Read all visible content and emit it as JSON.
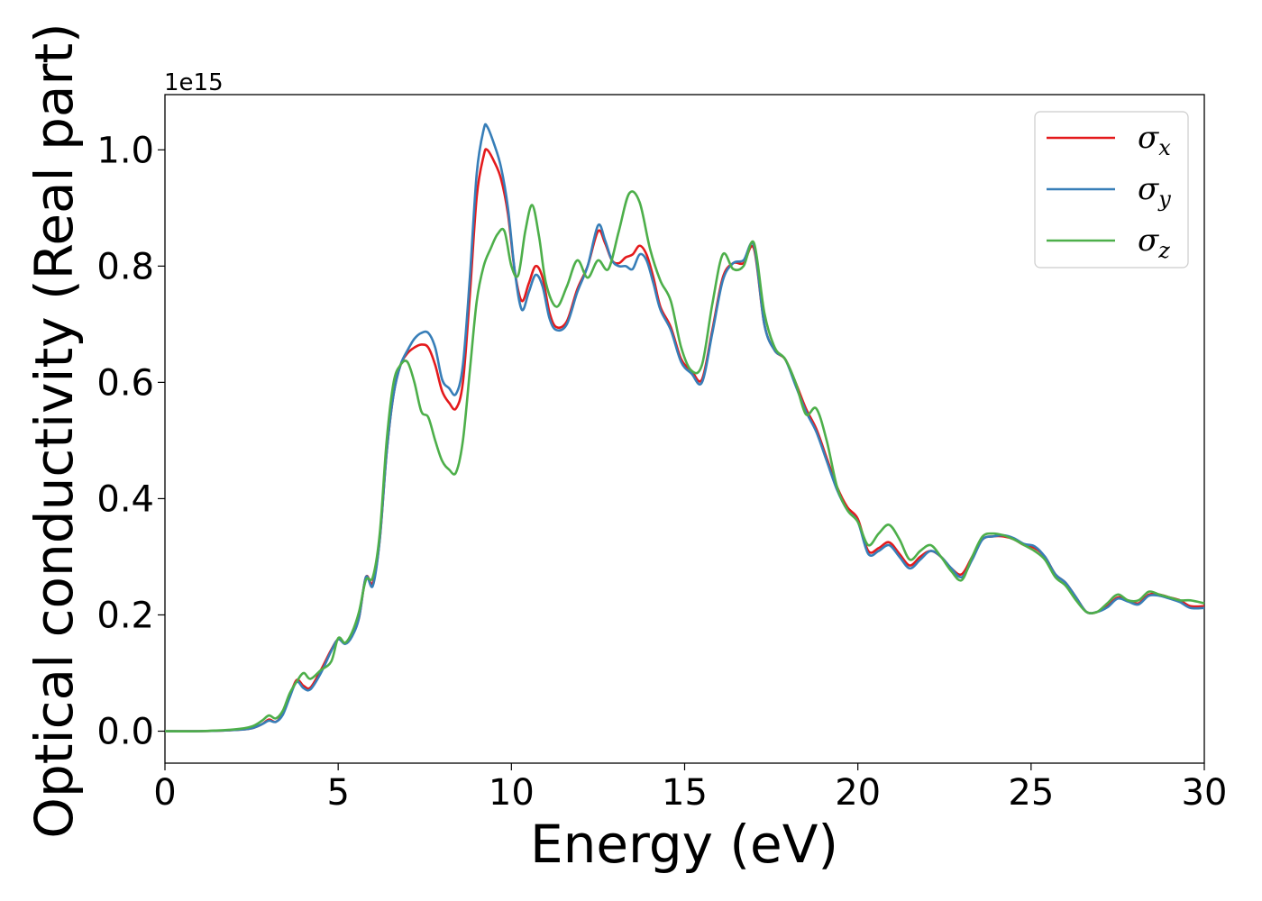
{
  "chart_data": {
    "type": "line",
    "title": "",
    "xlabel": "Energy (eV)",
    "ylabel": "Optical conductivity (Real part)",
    "y_offset_label": "1e15",
    "xlim": [
      0,
      30
    ],
    "ylim": [
      -0.055,
      1.095
    ],
    "xticks": [
      0,
      5,
      10,
      15,
      20,
      25,
      30
    ],
    "xtick_labels": [
      "0",
      "5",
      "10",
      "15",
      "20",
      "25",
      "30"
    ],
    "yticks": [
      0.0,
      0.2,
      0.4,
      0.6,
      0.8,
      1.0
    ],
    "ytick_labels": [
      "0.0",
      "0.2",
      "0.4",
      "0.6",
      "0.8",
      "1.0"
    ],
    "grid": false,
    "legend_position": "top-right",
    "series": [
      {
        "name": "σx",
        "legend_symbol": "σ",
        "legend_subscript": "x",
        "color": "#e41a1c",
        "x": [
          0,
          1,
          2,
          2.5,
          2.8,
          3.0,
          3.2,
          3.4,
          3.6,
          3.8,
          4.0,
          4.2,
          4.5,
          4.8,
          5.0,
          5.2,
          5.4,
          5.6,
          5.8,
          6.0,
          6.2,
          6.4,
          6.6,
          6.8,
          7.0,
          7.2,
          7.4,
          7.6,
          7.8,
          8.0,
          8.2,
          8.4,
          8.6,
          8.8,
          9.0,
          9.2,
          9.3,
          9.5,
          9.7,
          9.9,
          10.1,
          10.3,
          10.5,
          10.7,
          10.9,
          11.1,
          11.3,
          11.6,
          11.9,
          12.2,
          12.5,
          12.7,
          12.9,
          13.1,
          13.3,
          13.5,
          13.7,
          13.9,
          14.1,
          14.3,
          14.6,
          14.9,
          15.2,
          15.5,
          15.8,
          16.1,
          16.4,
          16.7,
          17.0,
          17.3,
          17.6,
          17.9,
          18.2,
          18.5,
          18.8,
          19.1,
          19.4,
          19.7,
          20.0,
          20.3,
          20.6,
          20.9,
          21.2,
          21.5,
          21.8,
          22.1,
          22.4,
          22.7,
          23.0,
          23.3,
          23.6,
          23.9,
          24.2,
          24.5,
          24.8,
          25.1,
          25.4,
          25.7,
          26.0,
          26.3,
          26.6,
          26.9,
          27.2,
          27.5,
          27.8,
          28.1,
          28.4,
          28.7,
          29.0,
          29.3,
          29.6,
          30.0
        ],
        "y": [
          0.0,
          0.0,
          0.002,
          0.005,
          0.012,
          0.02,
          0.016,
          0.03,
          0.06,
          0.088,
          0.078,
          0.075,
          0.105,
          0.14,
          0.158,
          0.152,
          0.165,
          0.195,
          0.265,
          0.255,
          0.33,
          0.48,
          0.58,
          0.63,
          0.65,
          0.66,
          0.665,
          0.66,
          0.63,
          0.585,
          0.565,
          0.555,
          0.6,
          0.75,
          0.92,
          0.99,
          1.0,
          0.98,
          0.95,
          0.89,
          0.79,
          0.74,
          0.77,
          0.8,
          0.78,
          0.72,
          0.695,
          0.705,
          0.76,
          0.8,
          0.86,
          0.84,
          0.81,
          0.805,
          0.815,
          0.82,
          0.835,
          0.82,
          0.78,
          0.73,
          0.695,
          0.64,
          0.62,
          0.605,
          0.69,
          0.78,
          0.805,
          0.805,
          0.83,
          0.7,
          0.655,
          0.64,
          0.6,
          0.555,
          0.52,
          0.47,
          0.42,
          0.385,
          0.365,
          0.31,
          0.315,
          0.325,
          0.305,
          0.285,
          0.3,
          0.31,
          0.3,
          0.28,
          0.27,
          0.3,
          0.33,
          0.335,
          0.335,
          0.33,
          0.32,
          0.315,
          0.3,
          0.27,
          0.255,
          0.23,
          0.205,
          0.205,
          0.215,
          0.23,
          0.225,
          0.22,
          0.235,
          0.235,
          0.23,
          0.225,
          0.215,
          0.215
        ]
      },
      {
        "name": "σy",
        "legend_symbol": "σ",
        "legend_subscript": "y",
        "color": "#377eb8",
        "x": [
          0,
          1,
          2,
          2.5,
          2.8,
          3.0,
          3.2,
          3.4,
          3.6,
          3.8,
          4.0,
          4.2,
          4.5,
          4.8,
          5.0,
          5.2,
          5.4,
          5.6,
          5.8,
          6.0,
          6.2,
          6.4,
          6.6,
          6.8,
          7.0,
          7.2,
          7.4,
          7.6,
          7.8,
          8.0,
          8.2,
          8.4,
          8.6,
          8.8,
          9.0,
          9.2,
          9.3,
          9.5,
          9.7,
          9.9,
          10.1,
          10.3,
          10.5,
          10.7,
          10.9,
          11.1,
          11.3,
          11.6,
          11.9,
          12.2,
          12.5,
          12.7,
          12.9,
          13.1,
          13.3,
          13.5,
          13.7,
          13.9,
          14.1,
          14.3,
          14.6,
          14.9,
          15.2,
          15.5,
          15.8,
          16.1,
          16.4,
          16.7,
          17.0,
          17.3,
          17.6,
          17.9,
          18.2,
          18.5,
          18.8,
          19.1,
          19.4,
          19.7,
          20.0,
          20.3,
          20.6,
          20.9,
          21.2,
          21.5,
          21.8,
          22.1,
          22.4,
          22.7,
          23.0,
          23.3,
          23.6,
          23.9,
          24.2,
          24.5,
          24.8,
          25.1,
          25.4,
          25.7,
          26.0,
          26.3,
          26.6,
          26.9,
          27.2,
          27.5,
          27.8,
          28.1,
          28.4,
          28.7,
          29.0,
          29.3,
          29.6,
          30.0
        ],
        "y": [
          0.0,
          0.0,
          0.002,
          0.005,
          0.012,
          0.018,
          0.016,
          0.028,
          0.058,
          0.085,
          0.074,
          0.072,
          0.1,
          0.138,
          0.158,
          0.15,
          0.163,
          0.195,
          0.265,
          0.25,
          0.33,
          0.48,
          0.58,
          0.63,
          0.655,
          0.675,
          0.685,
          0.685,
          0.66,
          0.605,
          0.59,
          0.58,
          0.63,
          0.78,
          0.96,
          1.035,
          1.04,
          1.01,
          0.97,
          0.9,
          0.79,
          0.725,
          0.755,
          0.785,
          0.765,
          0.71,
          0.69,
          0.7,
          0.755,
          0.8,
          0.87,
          0.845,
          0.81,
          0.8,
          0.8,
          0.795,
          0.82,
          0.81,
          0.77,
          0.725,
          0.69,
          0.635,
          0.615,
          0.6,
          0.685,
          0.775,
          0.805,
          0.81,
          0.835,
          0.7,
          0.655,
          0.64,
          0.595,
          0.55,
          0.515,
          0.465,
          0.415,
          0.38,
          0.36,
          0.305,
          0.31,
          0.32,
          0.3,
          0.28,
          0.295,
          0.31,
          0.3,
          0.28,
          0.265,
          0.295,
          0.33,
          0.335,
          0.337,
          0.332,
          0.322,
          0.318,
          0.3,
          0.27,
          0.255,
          0.23,
          0.205,
          0.205,
          0.213,
          0.228,
          0.223,
          0.218,
          0.233,
          0.233,
          0.228,
          0.222,
          0.212,
          0.212
        ]
      },
      {
        "name": "σz",
        "legend_symbol": "σ",
        "legend_subscript": "z",
        "color": "#4daf4a",
        "x": [
          0,
          1,
          2,
          2.5,
          2.8,
          3.0,
          3.2,
          3.4,
          3.6,
          3.8,
          4.0,
          4.2,
          4.5,
          4.8,
          5.0,
          5.2,
          5.4,
          5.6,
          5.8,
          6.0,
          6.2,
          6.4,
          6.6,
          6.8,
          7.0,
          7.2,
          7.4,
          7.6,
          7.8,
          8.0,
          8.2,
          8.4,
          8.6,
          8.8,
          9.0,
          9.2,
          9.4,
          9.6,
          9.8,
          10.0,
          10.2,
          10.4,
          10.6,
          10.8,
          11.0,
          11.3,
          11.6,
          11.9,
          12.2,
          12.5,
          12.8,
          13.1,
          13.4,
          13.7,
          14.0,
          14.3,
          14.6,
          14.9,
          15.2,
          15.5,
          15.8,
          16.1,
          16.4,
          16.7,
          17.0,
          17.3,
          17.6,
          17.9,
          18.2,
          18.5,
          18.8,
          19.1,
          19.4,
          19.7,
          20.0,
          20.3,
          20.6,
          20.9,
          21.2,
          21.5,
          21.8,
          22.1,
          22.4,
          22.7,
          23.0,
          23.3,
          23.6,
          23.9,
          24.2,
          24.5,
          24.8,
          25.1,
          25.4,
          25.7,
          26.0,
          26.3,
          26.6,
          26.9,
          27.2,
          27.5,
          27.8,
          28.1,
          28.4,
          28.7,
          29.0,
          29.3,
          29.6,
          30.0
        ],
        "y": [
          0.0,
          0.0,
          0.003,
          0.008,
          0.018,
          0.027,
          0.022,
          0.035,
          0.065,
          0.085,
          0.1,
          0.09,
          0.105,
          0.12,
          0.16,
          0.152,
          0.17,
          0.205,
          0.26,
          0.265,
          0.34,
          0.5,
          0.6,
          0.63,
          0.635,
          0.6,
          0.55,
          0.54,
          0.5,
          0.465,
          0.45,
          0.445,
          0.5,
          0.62,
          0.74,
          0.8,
          0.83,
          0.855,
          0.86,
          0.8,
          0.785,
          0.86,
          0.905,
          0.85,
          0.77,
          0.73,
          0.765,
          0.81,
          0.78,
          0.81,
          0.795,
          0.86,
          0.925,
          0.91,
          0.83,
          0.775,
          0.74,
          0.66,
          0.62,
          0.63,
          0.735,
          0.82,
          0.795,
          0.8,
          0.84,
          0.72,
          0.66,
          0.64,
          0.6,
          0.545,
          0.555,
          0.5,
          0.42,
          0.38,
          0.36,
          0.32,
          0.34,
          0.355,
          0.33,
          0.295,
          0.31,
          0.32,
          0.3,
          0.275,
          0.26,
          0.3,
          0.335,
          0.34,
          0.337,
          0.33,
          0.32,
          0.31,
          0.295,
          0.265,
          0.25,
          0.225,
          0.205,
          0.205,
          0.22,
          0.235,
          0.225,
          0.225,
          0.24,
          0.235,
          0.23,
          0.225,
          0.225,
          0.22
        ]
      }
    ]
  }
}
